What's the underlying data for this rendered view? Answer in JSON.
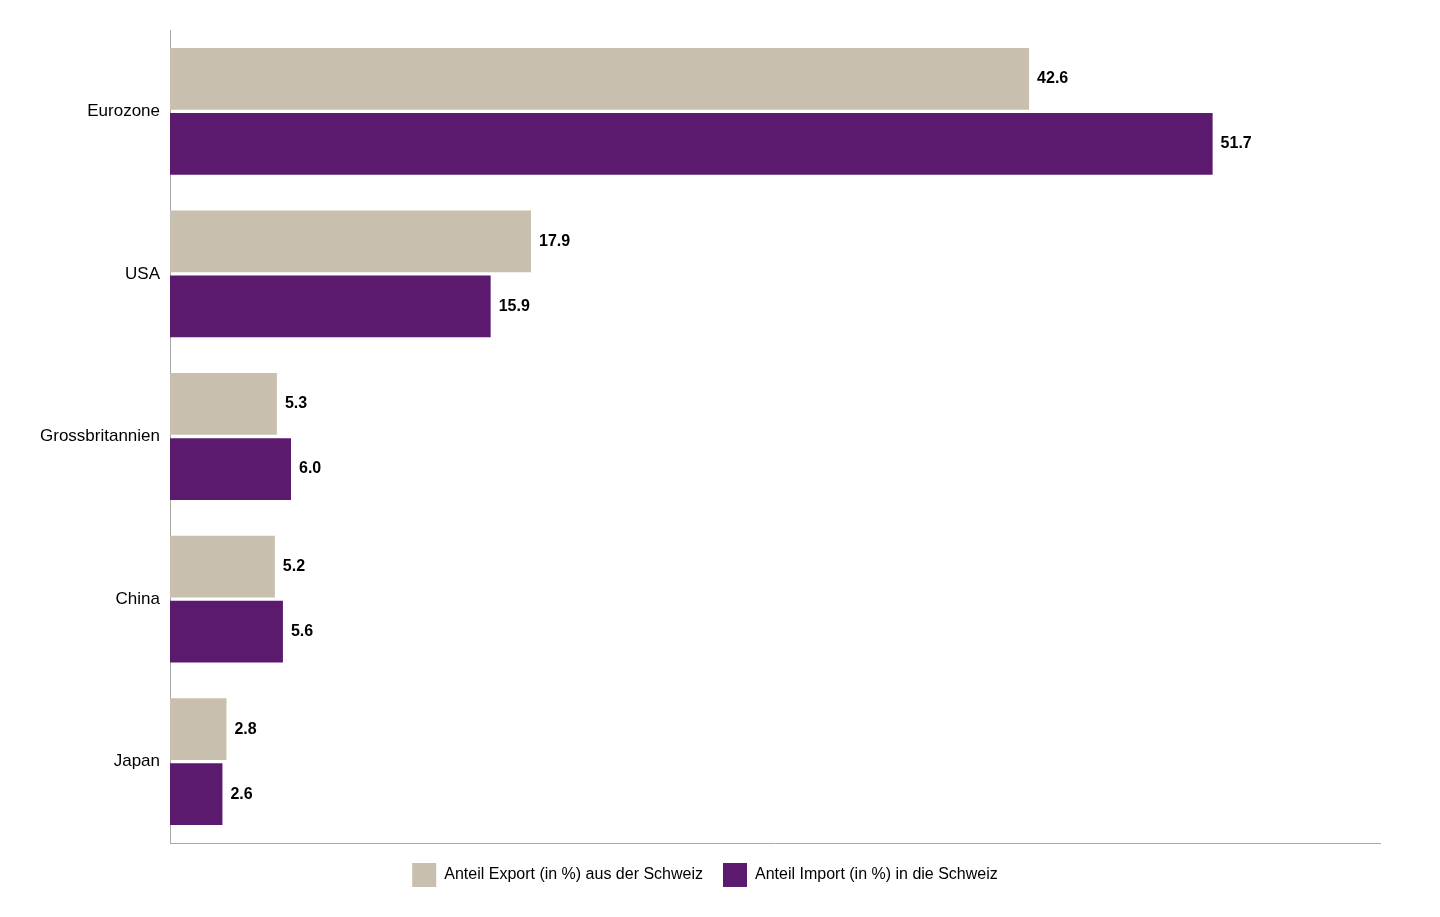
{
  "chart_data": {
    "type": "bar",
    "orientation": "horizontal",
    "categories": [
      "Eurozone",
      "USA",
      "Grossbritannien",
      "China",
      "Japan"
    ],
    "series": [
      {
        "name": "Anteil Export (in %) aus der Schweiz",
        "color": "#c8bfae",
        "values": [
          42.6,
          17.9,
          5.3,
          5.2,
          2.8
        ]
      },
      {
        "name": "Anteil Import (in %) in die Schweiz",
        "color": "#5b1a6e",
        "values": [
          51.7,
          15.9,
          6.0,
          5.6,
          2.6
        ]
      }
    ],
    "xlim": [
      0,
      60
    ],
    "grid": false,
    "legend": "bottom",
    "data_labels": true,
    "tick_labels": "y"
  }
}
